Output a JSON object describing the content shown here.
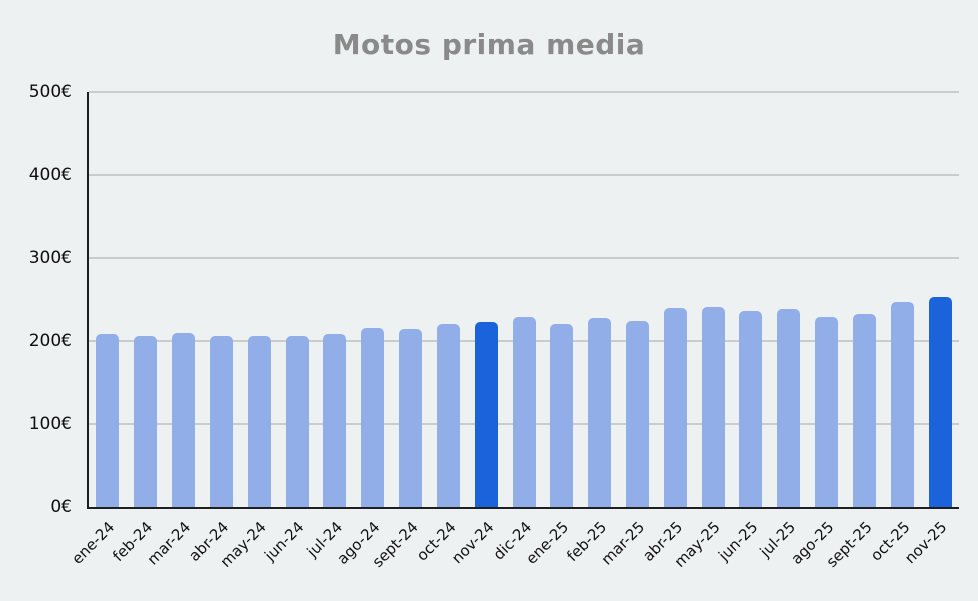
{
  "title": "Motos prima media",
  "colors": {
    "background": "#edf1f2",
    "bar": "#92aee9",
    "bar_highlight": "#1a63db",
    "title_text": "#8a8a8a",
    "axis_line": "#1f1f1f",
    "gridline": "#c7cccd",
    "tick_text": "#0e0e0e"
  },
  "chart_data": {
    "type": "bar",
    "title": "Motos prima media",
    "categories": [
      "ene-24",
      "feb-24",
      "mar-24",
      "abr-24",
      "may-24",
      "jun-24",
      "jul-24",
      "ago-24",
      "sept-24",
      "oct-24",
      "nov-24",
      "dic-24",
      "ene-25",
      "feb-25",
      "mar-25",
      "abr-25",
      "may-25",
      "jun-25",
      "jul-25",
      "ago-25",
      "sept-25",
      "oct-25",
      "nov-25"
    ],
    "values": [
      208,
      206,
      210,
      206,
      206,
      206,
      208,
      216,
      214,
      220,
      223,
      229,
      221,
      228,
      224,
      240,
      241,
      236,
      238,
      229,
      233,
      247,
      253
    ],
    "highlight_indices": [
      10,
      22
    ],
    "highlighted_categories": [
      "nov-24",
      "nov-25"
    ],
    "xlabel": "",
    "ylabel": "",
    "ylim": [
      0,
      500
    ],
    "y_tick_step": 100,
    "y_ticks": [
      "0€",
      "100€",
      "200€",
      "300€",
      "400€",
      "500€"
    ],
    "currency": "€",
    "grid": true,
    "legend": false
  }
}
